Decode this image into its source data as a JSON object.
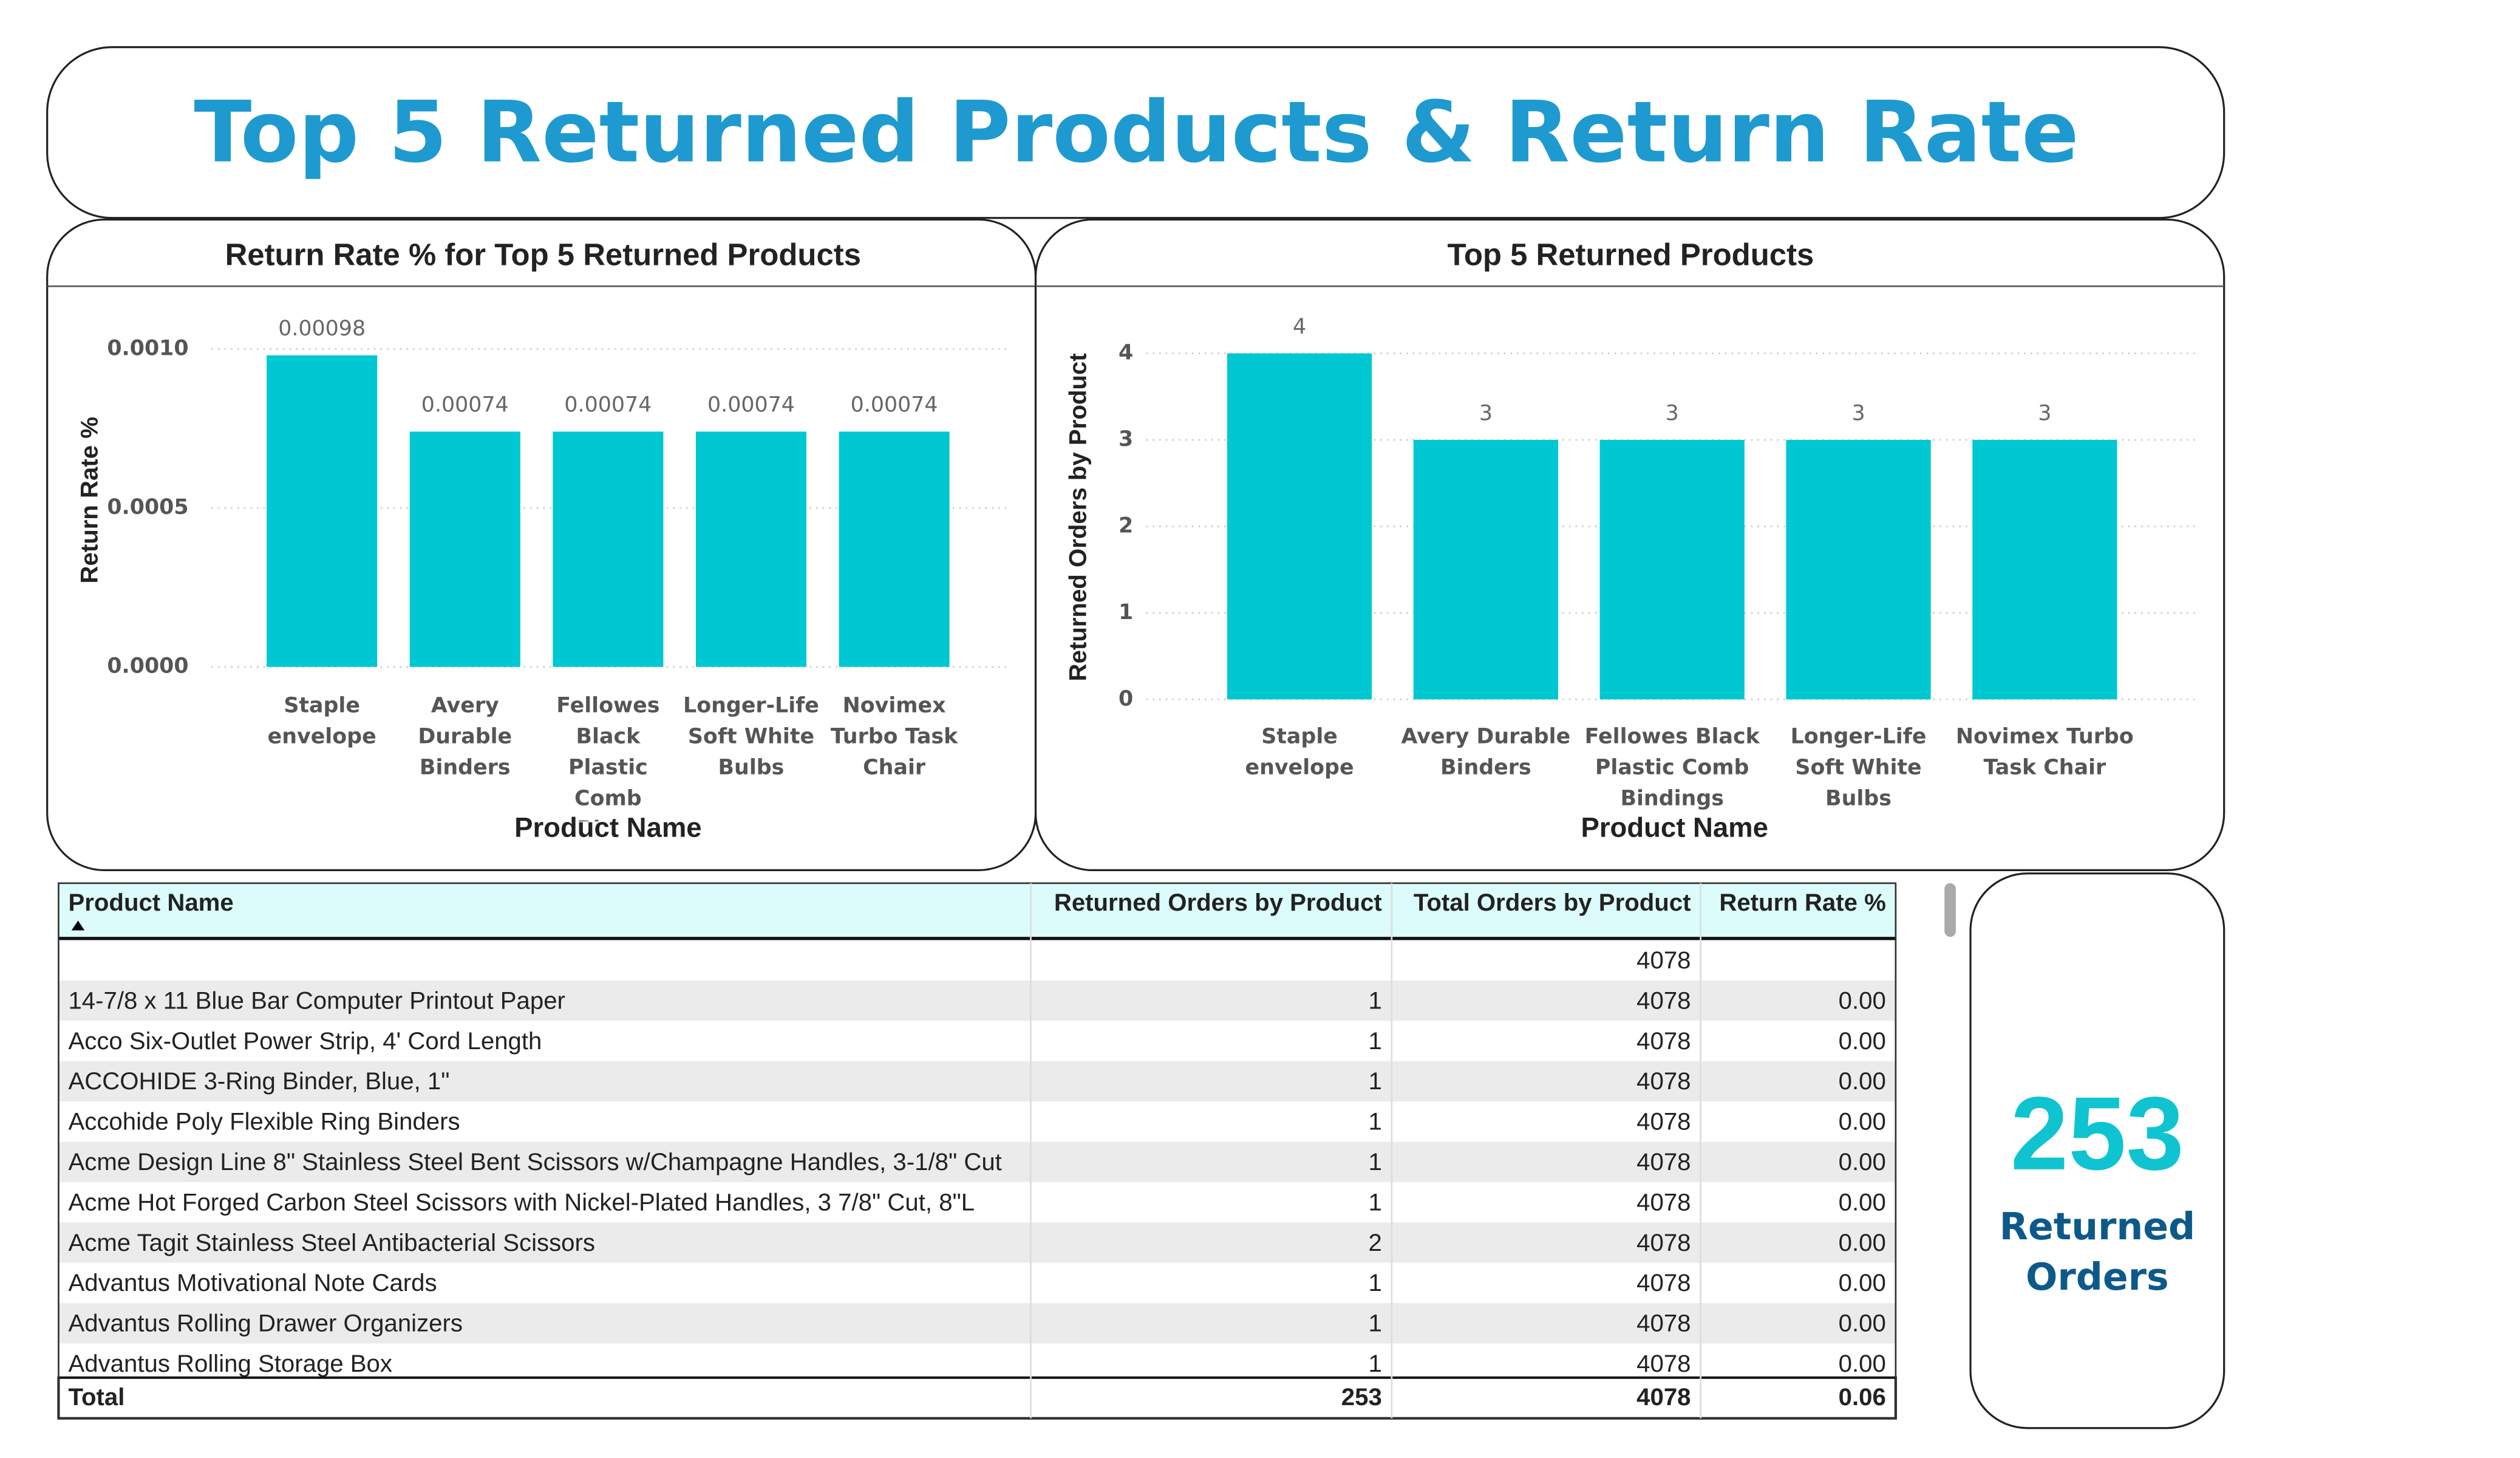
{
  "title": "Top 5 Returned Products & Return Rate",
  "chart_data": [
    {
      "type": "bar",
      "title": "Return Rate % for Top 5 Returned Products",
      "x_label": "Product Name",
      "y_label": "Return Rate %",
      "categories": [
        "Staple envelope",
        "Avery Durable Binders",
        "Fellowes Black Plastic Comb Bin...",
        "Longer-Life Soft White Bulbs",
        "Novimex Turbo Task Chair"
      ],
      "values": [
        0.00098,
        0.00074,
        0.00074,
        0.00074,
        0.00074
      ],
      "color": "#00c8d2",
      "ylim": [
        0,
        0.0011
      ],
      "yticks": [
        {
          "value": 0,
          "label": "0.0000"
        },
        {
          "value": 0.0005,
          "label": "0.0005"
        },
        {
          "value": 0.001,
          "label": "0.0010"
        }
      ],
      "grid": true
    },
    {
      "type": "bar",
      "title": "Top 5 Returned Products",
      "x_label": "Product Name",
      "y_label": "Returned Orders by Product",
      "categories": [
        "Staple envelope",
        "Avery Durable Binders",
        "Fellowes Black Plastic Comb Bindings",
        "Longer-Life Soft White Bulbs",
        "Novimex Turbo Task Chair"
      ],
      "values": [
        4,
        3,
        3,
        3,
        3
      ],
      "color": "#00c8d2",
      "ylim": [
        0,
        4.4
      ],
      "yticks": [
        0,
        1,
        2,
        3,
        4
      ],
      "grid": true
    }
  ],
  "table": {
    "columns": [
      "Product Name",
      "Returned Orders by Product",
      "Total Orders by Product",
      "Return Rate %"
    ],
    "rows": [
      [
        null,
        null,
        4078,
        null
      ],
      [
        "14-7/8 x 11 Blue Bar Computer Printout Paper",
        1,
        4078,
        "0.00"
      ],
      [
        "Acco Six-Outlet Power Strip, 4' Cord Length",
        1,
        4078,
        "0.00"
      ],
      [
        "ACCOHIDE 3-Ring Binder, Blue, 1\"",
        1,
        4078,
        "0.00"
      ],
      [
        "Accohide Poly Flexible Ring Binders",
        1,
        4078,
        "0.00"
      ],
      [
        "Acme Design Line 8\" Stainless Steel Bent Scissors w/Champagne Handles, 3-1/8\" Cut",
        1,
        4078,
        "0.00"
      ],
      [
        "Acme Hot Forged Carbon Steel Scissors with Nickel-Plated Handles, 3 7/8\" Cut, 8\"L",
        1,
        4078,
        "0.00"
      ],
      [
        "Acme Tagit Stainless Steel Antibacterial Scissors",
        2,
        4078,
        "0.00"
      ],
      [
        "Advantus Motivational Note Cards",
        1,
        4078,
        "0.00"
      ],
      [
        "Advantus Rolling Drawer Organizers",
        1,
        4078,
        "0.00"
      ],
      [
        "Advantus Rolling Storage Box",
        1,
        4078,
        "0.00"
      ]
    ],
    "total": [
      "Total",
      253,
      4078,
      "0.06"
    ]
  },
  "card": {
    "value": 253,
    "label": "Returned Orders"
  }
}
